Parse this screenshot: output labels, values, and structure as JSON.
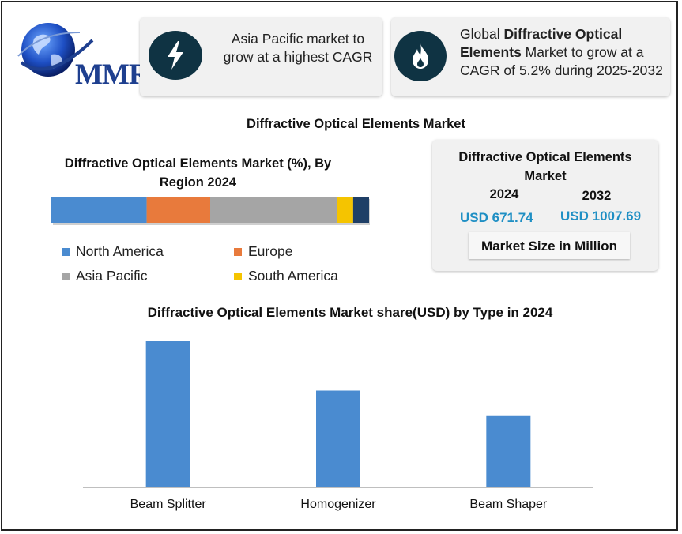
{
  "logo": {
    "text": "MMR"
  },
  "cards": {
    "region": {
      "icon": "lightning-icon",
      "text": "Asia Pacific market to grow at a highest CAGR"
    },
    "growth": {
      "icon": "flame-icon",
      "prefix": "Global ",
      "highlight": "Diffractive Optical Elements",
      "suffix": " Market to grow at a CAGR of 5.2% during 2025-2032"
    }
  },
  "main_title": "Diffractive Optical Elements Market",
  "region_chart": {
    "title": "Diffractive Optical Elements Market (%), By Region 2024",
    "legend": [
      "North America",
      "Europe",
      "Asia Pacific",
      "South America"
    ]
  },
  "market_size": {
    "title": "Diffractive Optical Elements Market",
    "year_2024": "2024",
    "year_2032": "2032",
    "value_2024": "USD 671.74",
    "value_2032": "USD 1007.69",
    "note": "Market Size in Million"
  },
  "type_chart": {
    "title": "Diffractive Optical Elements Market share(USD)  by Type in 2024"
  },
  "chart_data": [
    {
      "type": "bar",
      "orientation": "horizontal-stacked",
      "title": "Diffractive Optical Elements Market (%), By Region 2024",
      "categories": [
        "2024"
      ],
      "series": [
        {
          "name": "North America",
          "values": [
            30
          ],
          "color": "#4a8bd0"
        },
        {
          "name": "Europe",
          "values": [
            20
          ],
          "color": "#e87a3c"
        },
        {
          "name": "Asia Pacific",
          "values": [
            40
          ],
          "color": "#a5a5a5"
        },
        {
          "name": "South America",
          "values": [
            5
          ],
          "color": "#f5c400"
        },
        {
          "values": [
            5
          ],
          "color": "#1f3f66"
        }
      ],
      "legend": "bottom",
      "grid": false
    },
    {
      "type": "bar",
      "title": "Diffractive Optical Elements Market share(USD)  by Type in 2024",
      "categories": [
        "Beam Splitter",
        "Homogenizer",
        "Beam Shaper"
      ],
      "values": [
        148,
        98,
        73
      ],
      "ylim": [
        0,
        160
      ],
      "color": "#4a8bd0",
      "grid": false
    }
  ]
}
